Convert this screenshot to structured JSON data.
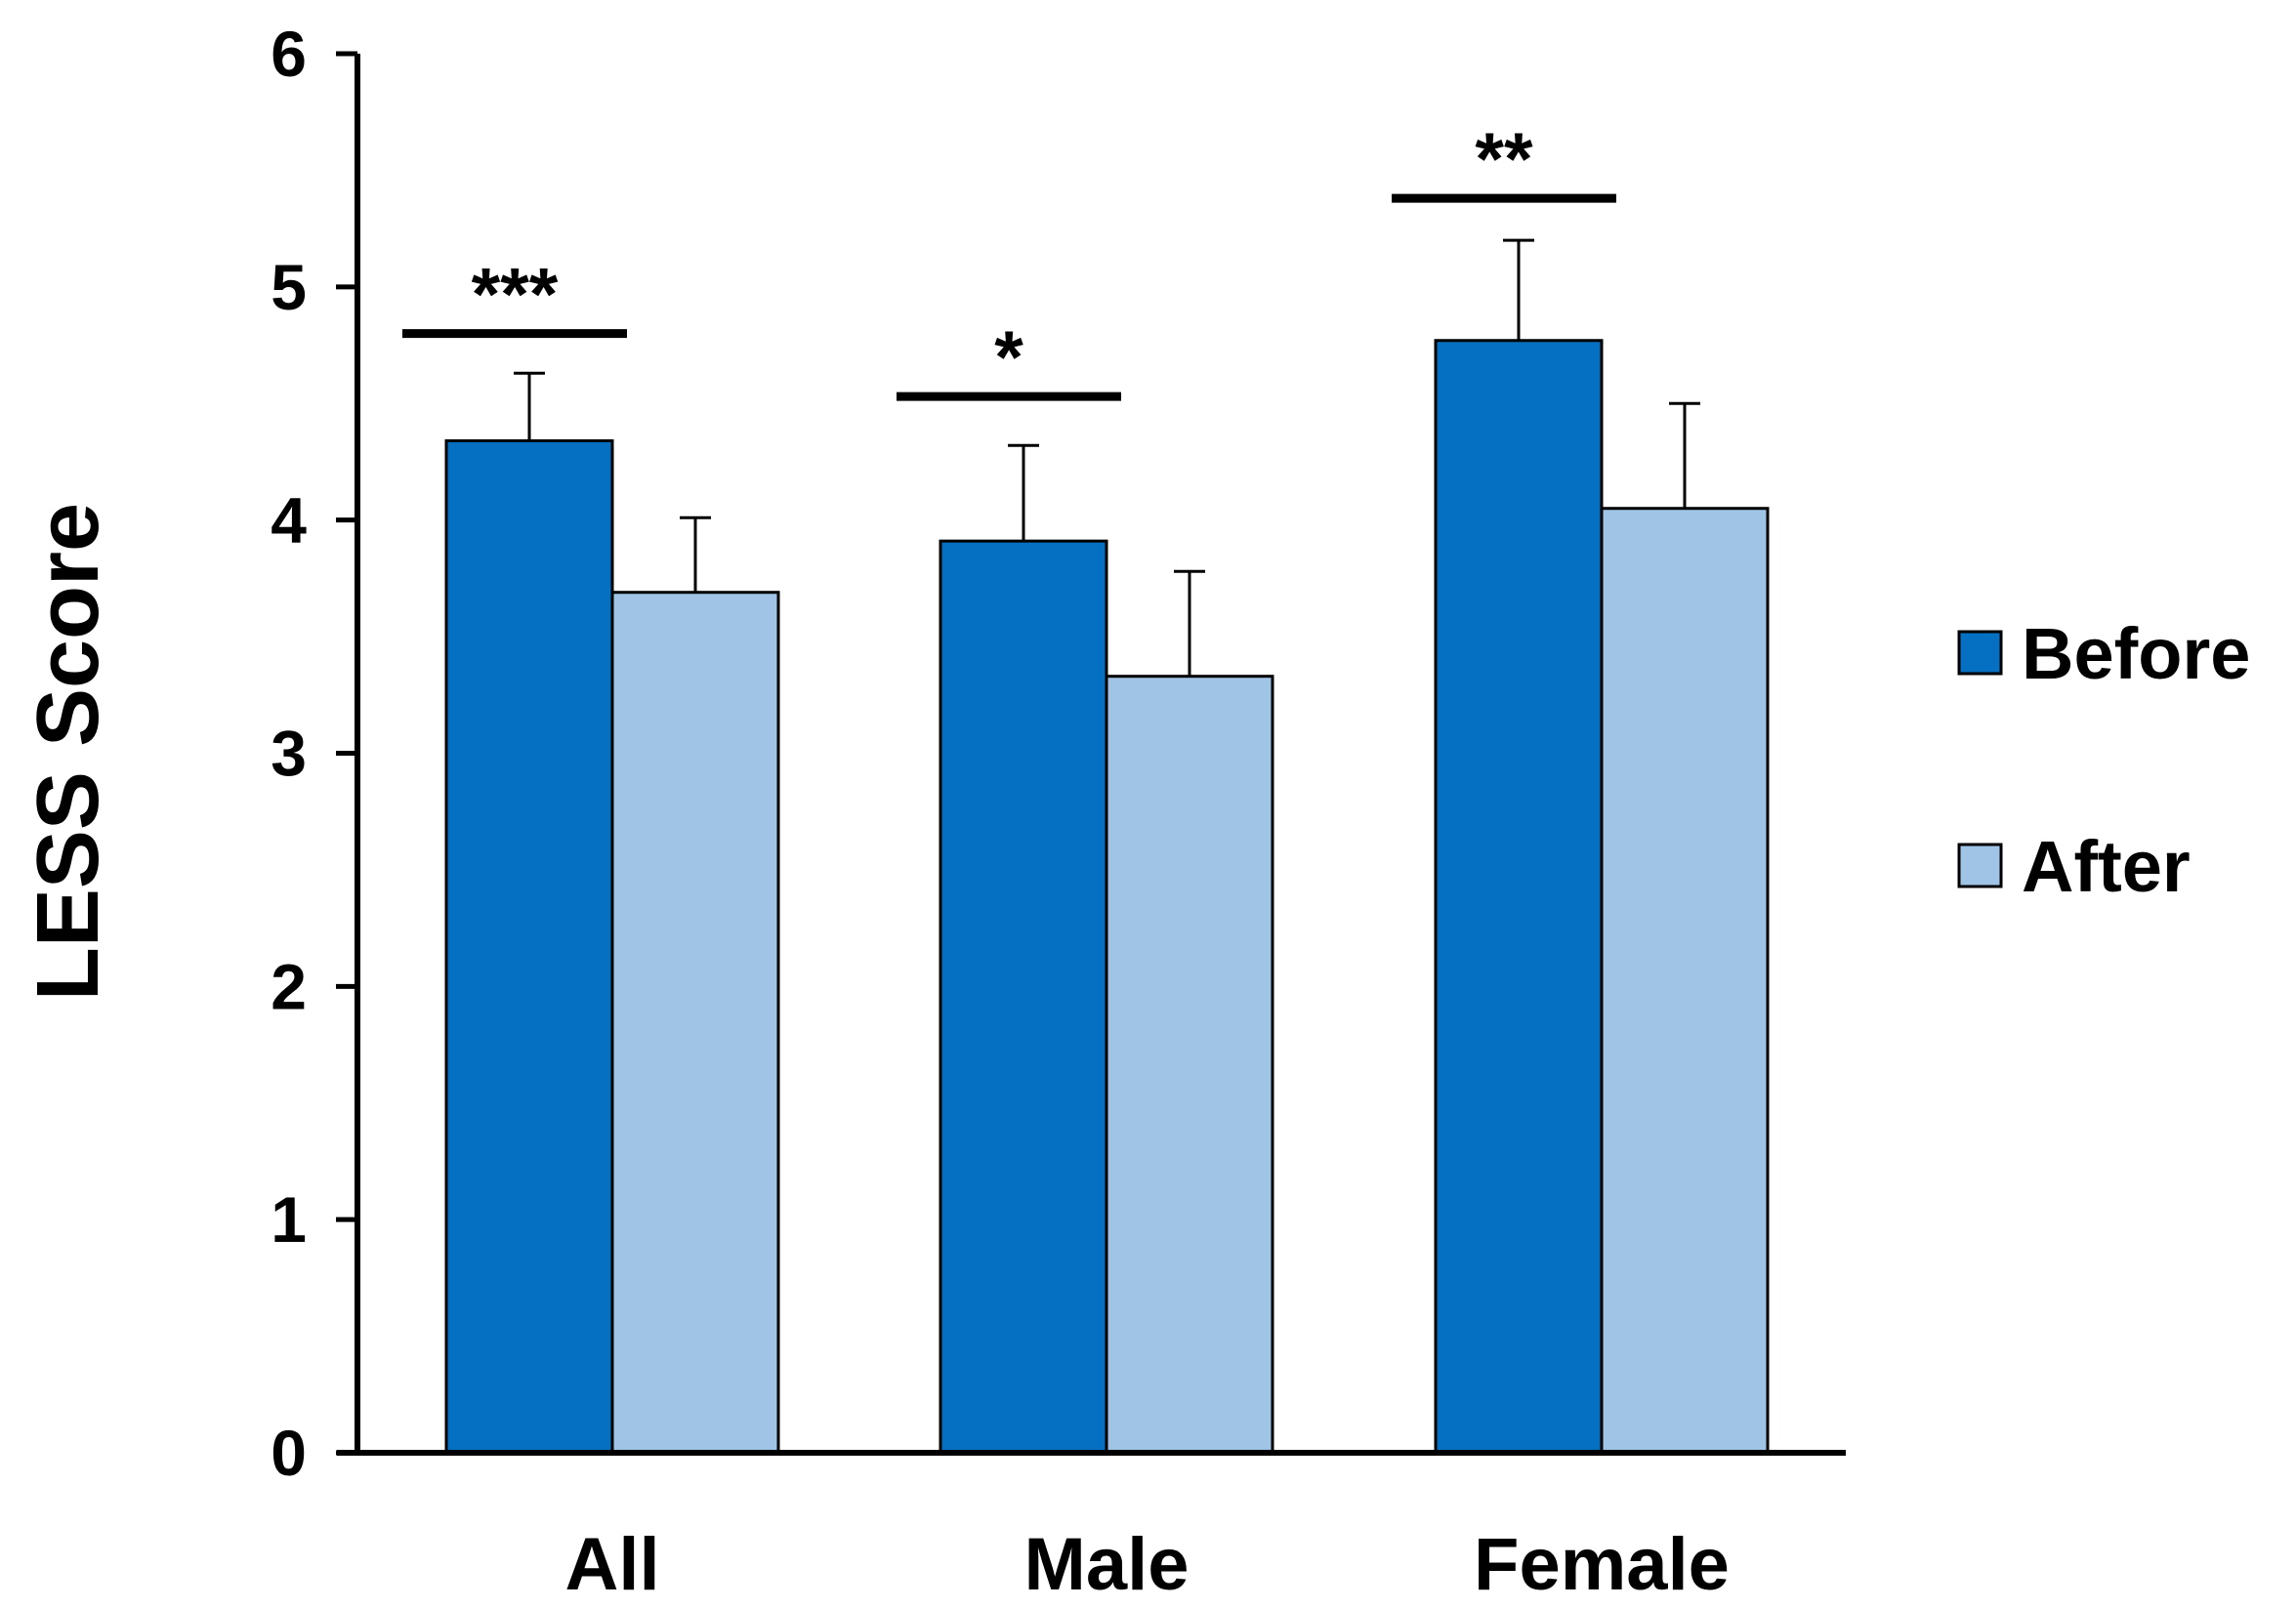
{
  "chart_data": {
    "type": "bar",
    "title": "",
    "xlabel": "",
    "ylabel": "LESS Score",
    "ylim": [
      0,
      6
    ],
    "yticks": [
      0,
      1,
      2,
      3,
      4,
      5,
      6
    ],
    "grid": false,
    "categories": [
      "All",
      "Male",
      "Female"
    ],
    "series": [
      {
        "name": "Before",
        "color": "#0570c2",
        "values": [
          4.34,
          3.91,
          4.77
        ],
        "errors": [
          0.29,
          0.41,
          0.43
        ]
      },
      {
        "name": "After",
        "color": "#9fc4e6",
        "values": [
          3.69,
          3.33,
          4.05
        ],
        "errors": [
          0.32,
          0.45,
          0.45
        ]
      }
    ],
    "significance": [
      {
        "category": "All",
        "label": "***",
        "y": 4.8
      },
      {
        "category": "Male",
        "label": "*",
        "y": 4.53
      },
      {
        "category": "Female",
        "label": "**",
        "y": 5.38
      }
    ],
    "legend_position": "right"
  }
}
